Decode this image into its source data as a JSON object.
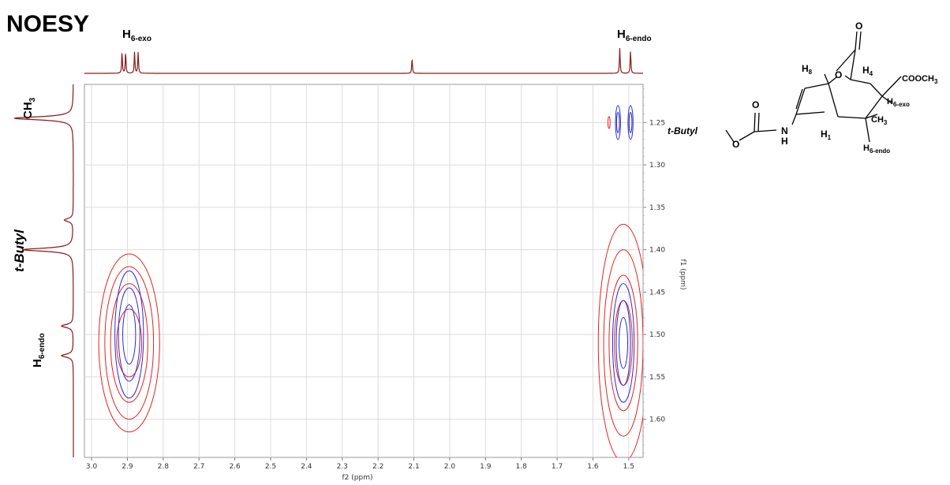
{
  "title": "NOESY",
  "top_labels": {
    "h6exo_main": "H",
    "h6exo_sub": "6-exo",
    "h6endo_main": "H",
    "h6endo_sub": "6-endo"
  },
  "left_labels": {
    "ch3_main": "CH",
    "ch3_sub": "3",
    "tbutyl": "t-Butyl",
    "h6endo_main": "H",
    "h6endo_sub": "6-endo"
  },
  "molecule": {
    "tbutyl": "t-Butyl",
    "o1": "O",
    "o2": "O",
    "o3": "O",
    "o4": "O",
    "nh_n": "N",
    "nh_h": "H",
    "h8_main": "H",
    "h8_sub": "8",
    "h4_main": "H",
    "h4_sub": "4",
    "h1_main": "H",
    "h1_sub": "1",
    "coo_main": "COOCH",
    "coo_sub": "3",
    "h6exo_main": "H",
    "h6exo_sub": "6-exo",
    "ch3_main": "CH",
    "ch3_sub": "3",
    "h6endo_main": "H",
    "h6endo_sub": "6-endo"
  },
  "chart_data": {
    "type": "heatmap",
    "title": "NOESY",
    "xlabel": "f2 (ppm)",
    "ylabel": "f1 (ppm)",
    "xlim": [
      3.02,
      1.46
    ],
    "ylim": [
      1.205,
      1.645
    ],
    "x_ticks": [
      "3.0",
      "2.9",
      "2.8",
      "2.7",
      "2.6",
      "2.5",
      "2.4",
      "2.3",
      "2.2",
      "2.1",
      "2.0",
      "1.9",
      "1.8",
      "1.7",
      "1.6",
      "1.5"
    ],
    "x_tick_values": [
      3.0,
      2.9,
      2.8,
      2.7,
      2.6,
      2.5,
      2.4,
      2.3,
      2.2,
      2.1,
      2.0,
      1.9,
      1.8,
      1.7,
      1.6,
      1.5
    ],
    "y_ticks": [
      "1.25",
      "1.30",
      "1.35",
      "1.40",
      "1.45",
      "1.50",
      "1.55",
      "1.60"
    ],
    "y_tick_values": [
      1.25,
      1.3,
      1.35,
      1.4,
      1.45,
      1.5,
      1.55,
      1.6
    ],
    "grid": true,
    "series": [
      {
        "name": "",
        "color": "#e8231f",
        "peaks": [
          {
            "f2": 2.895,
            "f1": 1.51,
            "rx": [
              0.035,
              0.052,
              0.068,
              0.085
            ],
            "ry": [
              0.04,
              0.07,
              0.09,
              0.105
            ]
          },
          {
            "f2": 1.515,
            "f1": 1.51,
            "rx": [
              0.025,
              0.04,
              0.055,
              0.07
            ],
            "ry": [
              0.05,
              0.08,
              0.11,
              0.14
            ]
          },
          {
            "f2": 1.555,
            "f1": 1.25,
            "rx": [
              0.003
            ],
            "ry": [
              0.007
            ]
          }
        ]
      },
      {
        "name": "",
        "color": "#2b2bd6",
        "peaks": [
          {
            "f2": 2.895,
            "f1": 1.5,
            "rx": [
              0.018,
              0.03,
              0.04
            ],
            "ry": [
              0.035,
              0.055,
              0.075
            ]
          },
          {
            "f2": 1.515,
            "f1": 1.51,
            "rx": [
              0.012,
              0.02,
              0.03
            ],
            "ry": [
              0.03,
              0.05,
              0.07
            ]
          },
          {
            "f2": 1.53,
            "f1": 1.25,
            "rx": [
              0.004,
              0.007
            ],
            "ry": [
              0.012,
              0.02
            ]
          },
          {
            "f2": 1.495,
            "f1": 1.25,
            "rx": [
              0.004,
              0.007
            ],
            "ry": [
              0.012,
              0.02
            ]
          }
        ]
      }
    ],
    "f2_projection_peaks": [
      {
        "ppm": 2.915,
        "height": 0.85
      },
      {
        "ppm": 2.905,
        "height": 0.85
      },
      {
        "ppm": 2.88,
        "height": 0.85
      },
      {
        "ppm": 2.87,
        "height": 0.85
      },
      {
        "ppm": 2.105,
        "height": 0.6
      },
      {
        "ppm": 1.525,
        "height": 1.0
      },
      {
        "ppm": 1.495,
        "height": 0.9
      }
    ],
    "f1_projection_peaks": [
      {
        "ppm": 1.245,
        "height": 1.0
      },
      {
        "ppm": 1.365,
        "height": 0.15
      },
      {
        "ppm": 1.4,
        "height": 0.85
      },
      {
        "ppm": 1.49,
        "height": 0.2
      },
      {
        "ppm": 1.525,
        "height": 0.2
      }
    ]
  }
}
